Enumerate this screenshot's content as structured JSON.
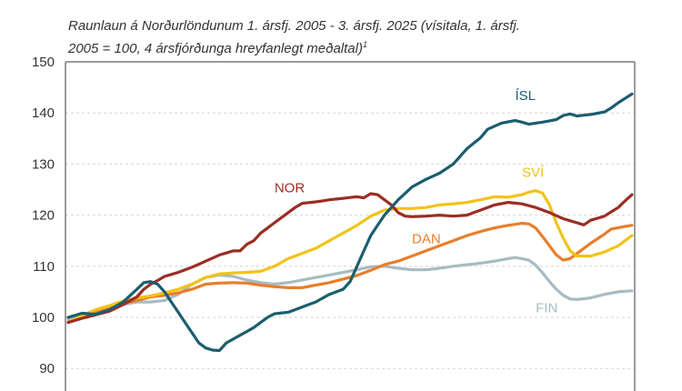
{
  "title": {
    "line1": "Raunlaun á Norðurlöndunum 1. ársfj. 2005 - 3. ársfj. 2025 (vísitala, 1. ársfj.",
    "line2": "2005 = 100, 4 ársfjórðunga hreyfanlegt meðaltal)",
    "footnote_mark": "1"
  },
  "chart_data": {
    "type": "line",
    "title": "Raunlaun á Norðurlöndunum 1. ársfj. 2005 - 3. ársfj. 2025 (vísitala, 1. ársfj. 2005 = 100, 4 ársfjórðunga hreyfanlegt meðaltal)",
    "xlabel": "",
    "ylabel": "",
    "x_start": "2005 Q1",
    "x_end": "2025 Q3",
    "n_points": 83,
    "ylim": [
      88,
      150
    ],
    "yticks": [
      90,
      100,
      110,
      120,
      130,
      140,
      150
    ],
    "grid": "horizontal-dotted",
    "legend": "inline-labels",
    "series": [
      {
        "name": "ÍSL",
        "color": "#1b5e6e",
        "knots": [
          [
            0,
            100
          ],
          [
            2,
            100.8
          ],
          [
            4,
            100.6
          ],
          [
            6,
            101.5
          ],
          [
            8,
            103
          ],
          [
            10,
            105.5
          ],
          [
            11,
            106.8
          ],
          [
            12,
            107
          ],
          [
            13,
            106.5
          ],
          [
            14,
            105
          ],
          [
            15,
            103
          ],
          [
            16,
            101
          ],
          [
            17,
            99
          ],
          [
            18,
            97
          ],
          [
            19,
            95
          ],
          [
            20,
            94
          ],
          [
            21,
            93.6
          ],
          [
            22,
            93.5
          ],
          [
            23,
            95
          ],
          [
            25,
            96.5
          ],
          [
            27,
            98
          ],
          [
            29,
            100
          ],
          [
            30,
            100.7
          ],
          [
            32,
            101
          ],
          [
            34,
            102
          ],
          [
            36,
            103
          ],
          [
            38,
            104.5
          ],
          [
            40,
            105.5
          ],
          [
            41,
            107
          ],
          [
            42,
            110
          ],
          [
            43,
            113
          ],
          [
            44,
            116
          ],
          [
            45,
            118
          ],
          [
            46,
            120
          ],
          [
            47,
            121.5
          ],
          [
            48,
            123
          ],
          [
            50,
            125.5
          ],
          [
            52,
            127
          ],
          [
            54,
            128.2
          ],
          [
            56,
            130
          ],
          [
            58,
            133
          ],
          [
            60,
            135.2
          ],
          [
            61,
            136.8
          ],
          [
            63,
            138
          ],
          [
            65,
            138.5
          ],
          [
            66,
            138.2
          ],
          [
            67,
            137.8
          ],
          [
            69,
            138.2
          ],
          [
            71,
            138.7
          ],
          [
            72,
            139.5
          ],
          [
            73,
            139.8
          ],
          [
            74,
            139.4
          ],
          [
            76,
            139.7
          ],
          [
            78,
            140.2
          ],
          [
            79,
            141
          ],
          [
            80,
            142
          ],
          [
            82,
            143.7
          ]
        ]
      },
      {
        "name": "NOR",
        "color": "#9b2d24",
        "knots": [
          [
            0,
            99
          ],
          [
            2,
            99.8
          ],
          [
            4,
            100.5
          ],
          [
            6,
            101.2
          ],
          [
            8,
            102.5
          ],
          [
            10,
            104
          ],
          [
            11,
            105.5
          ],
          [
            12,
            106.5
          ],
          [
            13,
            107.2
          ],
          [
            14,
            108
          ],
          [
            16,
            108.8
          ],
          [
            18,
            109.8
          ],
          [
            20,
            111
          ],
          [
            22,
            112.2
          ],
          [
            24,
            113
          ],
          [
            25,
            113
          ],
          [
            26,
            114.3
          ],
          [
            27,
            115
          ],
          [
            28,
            116.5
          ],
          [
            30,
            118.5
          ],
          [
            32,
            120.5
          ],
          [
            33,
            121.5
          ],
          [
            34,
            122.3
          ],
          [
            36,
            122.6
          ],
          [
            38,
            123
          ],
          [
            40,
            123.3
          ],
          [
            42,
            123.6
          ],
          [
            43,
            123.4
          ],
          [
            44,
            124.2
          ],
          [
            45,
            124
          ],
          [
            46,
            123
          ],
          [
            47,
            122
          ],
          [
            48,
            120.5
          ],
          [
            49,
            119.8
          ],
          [
            50,
            119.7
          ],
          [
            52,
            119.8
          ],
          [
            54,
            120
          ],
          [
            56,
            119.8
          ],
          [
            58,
            120
          ],
          [
            60,
            121
          ],
          [
            62,
            122
          ],
          [
            64,
            122.5
          ],
          [
            66,
            122.2
          ],
          [
            68,
            121.5
          ],
          [
            70,
            120.5
          ],
          [
            72,
            119.3
          ],
          [
            74,
            118.5
          ],
          [
            75,
            118.1
          ],
          [
            76,
            119
          ],
          [
            78,
            119.8
          ],
          [
            80,
            121.5
          ],
          [
            81,
            122.8
          ],
          [
            82,
            124
          ]
        ]
      },
      {
        "name": "SVÍ",
        "color": "#f2c318",
        "knots": [
          [
            0,
            99
          ],
          [
            2,
            100.3
          ],
          [
            4,
            101.5
          ],
          [
            6,
            102.3
          ],
          [
            8,
            103.2
          ],
          [
            10,
            103.8
          ],
          [
            12,
            104.2
          ],
          [
            14,
            104.8
          ],
          [
            16,
            105.5
          ],
          [
            18,
            106.5
          ],
          [
            20,
            107.8
          ],
          [
            22,
            108.5
          ],
          [
            24,
            108.7
          ],
          [
            26,
            108.8
          ],
          [
            28,
            109
          ],
          [
            30,
            110
          ],
          [
            32,
            111.5
          ],
          [
            34,
            112.5
          ],
          [
            36,
            113.5
          ],
          [
            38,
            115
          ],
          [
            40,
            116.5
          ],
          [
            42,
            118
          ],
          [
            44,
            119.8
          ],
          [
            46,
            121
          ],
          [
            48,
            121.3
          ],
          [
            50,
            121.3
          ],
          [
            52,
            121.5
          ],
          [
            54,
            122
          ],
          [
            56,
            122.2
          ],
          [
            58,
            122.5
          ],
          [
            60,
            123
          ],
          [
            62,
            123.6
          ],
          [
            64,
            123.5
          ],
          [
            66,
            124
          ],
          [
            67,
            124.5
          ],
          [
            68,
            124.8
          ],
          [
            69,
            124.3
          ],
          [
            70,
            122
          ],
          [
            71,
            118.5
          ],
          [
            72,
            115.5
          ],
          [
            73,
            113
          ],
          [
            74,
            112
          ],
          [
            76,
            112
          ],
          [
            78,
            112.8
          ],
          [
            80,
            114
          ],
          [
            82,
            116
          ]
        ]
      },
      {
        "name": "DAN",
        "color": "#e87e2b",
        "knots": [
          [
            0,
            99
          ],
          [
            2,
            100
          ],
          [
            4,
            101
          ],
          [
            6,
            102
          ],
          [
            8,
            102.8
          ],
          [
            10,
            103.3
          ],
          [
            12,
            104
          ],
          [
            14,
            104.3
          ],
          [
            16,
            104.8
          ],
          [
            18,
            105.5
          ],
          [
            20,
            106.5
          ],
          [
            22,
            106.7
          ],
          [
            24,
            106.8
          ],
          [
            26,
            106.7
          ],
          [
            28,
            106.3
          ],
          [
            30,
            106
          ],
          [
            32,
            105.8
          ],
          [
            34,
            105.8
          ],
          [
            36,
            106.3
          ],
          [
            38,
            106.8
          ],
          [
            40,
            107.5
          ],
          [
            42,
            108.2
          ],
          [
            44,
            109.2
          ],
          [
            46,
            110.3
          ],
          [
            48,
            111
          ],
          [
            50,
            112
          ],
          [
            52,
            113
          ],
          [
            54,
            114
          ],
          [
            56,
            115
          ],
          [
            58,
            116
          ],
          [
            60,
            116.8
          ],
          [
            62,
            117.5
          ],
          [
            64,
            118
          ],
          [
            66,
            118.4
          ],
          [
            67,
            118.3
          ],
          [
            68,
            117.5
          ],
          [
            69,
            115.8
          ],
          [
            70,
            114
          ],
          [
            71,
            112.2
          ],
          [
            72,
            111.2
          ],
          [
            73,
            111.5
          ],
          [
            74,
            112.5
          ],
          [
            76,
            114.5
          ],
          [
            78,
            116.3
          ],
          [
            79,
            117.3
          ],
          [
            81,
            117.8
          ],
          [
            82,
            118
          ]
        ]
      },
      {
        "name": "FIN",
        "color": "#a6bcc2",
        "knots": [
          [
            0,
            99.5
          ],
          [
            2,
            100.5
          ],
          [
            4,
            101.3
          ],
          [
            6,
            102
          ],
          [
            8,
            102.5
          ],
          [
            10,
            103
          ],
          [
            12,
            103
          ],
          [
            14,
            103.3
          ],
          [
            16,
            104.5
          ],
          [
            18,
            106.5
          ],
          [
            20,
            107.8
          ],
          [
            22,
            108.3
          ],
          [
            24,
            108
          ],
          [
            26,
            107.3
          ],
          [
            28,
            106.8
          ],
          [
            30,
            106.5
          ],
          [
            32,
            106.8
          ],
          [
            34,
            107.3
          ],
          [
            36,
            107.8
          ],
          [
            38,
            108.3
          ],
          [
            40,
            108.8
          ],
          [
            42,
            109.3
          ],
          [
            44,
            109.9
          ],
          [
            46,
            110
          ],
          [
            48,
            109.6
          ],
          [
            50,
            109.3
          ],
          [
            52,
            109.3
          ],
          [
            54,
            109.6
          ],
          [
            56,
            110
          ],
          [
            58,
            110.3
          ],
          [
            60,
            110.6
          ],
          [
            62,
            111
          ],
          [
            64,
            111.5
          ],
          [
            65,
            111.7
          ],
          [
            66,
            111.5
          ],
          [
            67,
            111.2
          ],
          [
            68,
            110.2
          ],
          [
            69,
            108.7
          ],
          [
            70,
            107
          ],
          [
            71,
            105.5
          ],
          [
            72,
            104.3
          ],
          [
            73,
            103.6
          ],
          [
            74,
            103.5
          ],
          [
            76,
            103.8
          ],
          [
            78,
            104.5
          ],
          [
            80,
            105
          ],
          [
            82,
            105.2
          ]
        ]
      }
    ],
    "labels": [
      {
        "series": "ÍSL",
        "text": "ÍSL",
        "anchor_index": 65,
        "anchor_value": 142.5
      },
      {
        "series": "NOR",
        "text": "NOR",
        "anchor_index": 30,
        "anchor_value": 124.5
      },
      {
        "series": "SVÍ",
        "text": "SVÍ",
        "anchor_index": 66,
        "anchor_value": 127.5
      },
      {
        "series": "DAN",
        "text": "DAN",
        "anchor_index": 50,
        "anchor_value": 114.5
      },
      {
        "series": "FIN",
        "text": "FIN",
        "anchor_index": 68,
        "anchor_value": 101
      }
    ]
  }
}
